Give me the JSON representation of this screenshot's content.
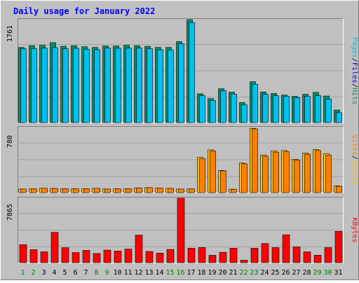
{
  "colors": {
    "background": "#c0c0c0",
    "plot_bg": "#c0c0c0",
    "frame_light": "#ffffff",
    "frame_dark": "#808080",
    "title": "#0000ff",
    "hits": "#008f6b",
    "files": "#00c0f0",
    "pages": "#00c0f0",
    "visits": "#ffc000",
    "sites": "#ff8000",
    "kbytes": "#ff0000",
    "day_weekday": "#000000",
    "day_weekend": "#008000"
  },
  "chart_data": {
    "type": "bar",
    "title": "Daily usage for January 2022",
    "x": {
      "categories": [
        "1",
        "2",
        "3",
        "4",
        "5",
        "6",
        "7",
        "8",
        "9",
        "10",
        "11",
        "12",
        "13",
        "14",
        "15",
        "16",
        "17",
        "18",
        "19",
        "20",
        "21",
        "22",
        "23",
        "24",
        "25",
        "26",
        "27",
        "28",
        "29",
        "30",
        "31"
      ],
      "weekend_days": [
        "1",
        "2",
        "8",
        "9",
        "15",
        "16",
        "22",
        "23",
        "29",
        "30"
      ]
    },
    "panels": [
      {
        "name": "hits-files-pages",
        "ymax_label": "1761",
        "ylim": [
          0,
          1761
        ],
        "grid": true,
        "legend_right": [
          {
            "text": "Pages",
            "color": "#00c0f0"
          },
          {
            "text": "/",
            "color": "#000000"
          },
          {
            "text": "Files",
            "color": "#0000ff"
          },
          {
            "text": "/",
            "color": "#000000"
          },
          {
            "text": "Hits",
            "color": "#008f6b"
          }
        ],
        "series": [
          {
            "name": "Hits",
            "color": "#008f6b",
            "values": [
              1285,
              1316,
              1322,
              1367,
              1305,
              1316,
              1297,
              1285,
              1310,
              1310,
              1322,
              1316,
              1304,
              1285,
              1285,
              1385,
              1761,
              492,
              410,
              579,
              520,
              343,
              698,
              523,
              498,
              471,
              449,
              484,
              517,
              455,
              215
            ]
          },
          {
            "name": "Files",
            "color": "#00c0f0",
            "values": [
              1262,
              1264,
              1273,
              1282,
              1262,
              1270,
              1256,
              1248,
              1275,
              1270,
              1275,
              1275,
              1264,
              1245,
              1240,
              1350,
              1712,
              461,
              380,
              547,
              488,
              302,
              656,
              485,
              460,
              450,
              428,
              449,
              460,
              404,
              170
            ]
          },
          {
            "name": "Pages",
            "color": "#00c0f0",
            "values": [
              1262,
              1264,
              1273,
              1282,
              1262,
              1270,
              1256,
              1248,
              1275,
              1270,
              1275,
              1275,
              1264,
              1245,
              1240,
              1350,
              1712,
              461,
              380,
              547,
              488,
              302,
              656,
              485,
              460,
              450,
              428,
              449,
              460,
              404,
              170
            ]
          }
        ]
      },
      {
        "name": "visits-sites",
        "ymax_label": "780",
        "ylim": [
          0,
          780
        ],
        "grid": true,
        "legend_right": [
          {
            "text": "Sites",
            "color": "#ff8000"
          },
          {
            "text": "/",
            "color": "#000000"
          },
          {
            "text": "Visits",
            "color": "#ffc000"
          }
        ],
        "series": [
          {
            "name": "Visits",
            "color": "#ffc000",
            "values": [
              43,
              45,
              52,
              50,
              46,
              46,
              46,
              52,
              43,
              45,
              45,
              57,
              59,
              55,
              51,
              43,
              44,
              422,
              512,
              266,
              41,
              354,
              770,
              451,
              500,
              504,
              400,
              475,
              517,
              468,
              81
            ]
          },
          {
            "name": "Sites",
            "color": "#ff8000",
            "values": [
              43,
              45,
              52,
              50,
              46,
              46,
              46,
              52,
              43,
              45,
              45,
              57,
              59,
              55,
              51,
              43,
              44,
              405,
              500,
              262,
              40,
              345,
              763,
              436,
              485,
              490,
              390,
              460,
              505,
              450,
              76
            ]
          }
        ]
      },
      {
        "name": "kbytes",
        "ymax_label": "7865",
        "ylim": [
          0,
          7865
        ],
        "grid": true,
        "legend_right": [
          {
            "text": "KBytes",
            "color": "#ff0000"
          }
        ],
        "series": [
          {
            "name": "KBytes",
            "color": "#ff0000",
            "values": [
              2200,
              1590,
              1330,
              3700,
              1830,
              1240,
              1500,
              1120,
              1540,
              1420,
              1660,
              3360,
              1370,
              1160,
              1620,
              7865,
              1760,
              1850,
              900,
              1270,
              1770,
              300,
              1770,
              2340,
              1840,
              3410,
              1920,
              1320,
              910,
              1840,
              3820
            ]
          }
        ]
      }
    ]
  }
}
